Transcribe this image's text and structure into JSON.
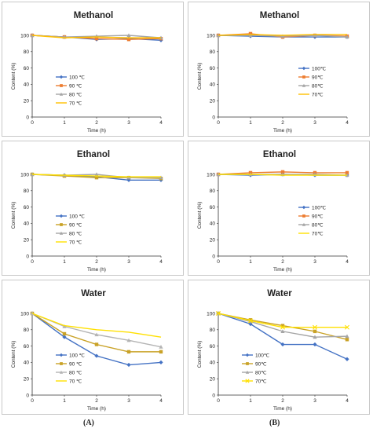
{
  "panel_labels": {
    "left": "(A)",
    "right": "(B)"
  },
  "chart_data": [
    {
      "type": "line",
      "title": "Methanol",
      "xlabel": "Time (h)",
      "ylabel": "Content (%)",
      "xlim": [
        0,
        4
      ],
      "ylim": [
        0,
        100
      ],
      "xticks": [
        "0",
        "1",
        "2",
        "3",
        "4"
      ],
      "yticks": [
        "0",
        "20",
        "40",
        "60",
        "80",
        "100"
      ],
      "x": [
        0,
        1,
        2,
        3,
        4
      ],
      "legend_position": "left",
      "series": [
        {
          "name": "100 ℃",
          "color": "#4472c4",
          "marker": "diamond",
          "values": [
            100,
            98,
            95,
            96,
            94
          ]
        },
        {
          "name": "90 ℃",
          "color": "#ed7d31",
          "marker": "square",
          "values": [
            100,
            98,
            96,
            95,
            96
          ]
        },
        {
          "name": "80 ℃",
          "color": "#a5a5a5",
          "marker": "triangle",
          "values": [
            100,
            98,
            99,
            100,
            97
          ]
        },
        {
          "name": "70 ℃",
          "color": "#ffc000",
          "marker": "none",
          "values": [
            100,
            97,
            98,
            97,
            97
          ]
        }
      ]
    },
    {
      "type": "line",
      "title": "Methanol",
      "xlabel": "Time (h)",
      "ylabel": "Content (%)",
      "xlim": [
        0,
        4
      ],
      "ylim": [
        0,
        100
      ],
      "xticks": [
        "0",
        "1",
        "2",
        "3",
        "4"
      ],
      "yticks": [
        "0",
        "20",
        "40",
        "60",
        "80",
        "100"
      ],
      "x": [
        0,
        1,
        2,
        3,
        4
      ],
      "legend_position": "right",
      "series": [
        {
          "name": "100℃",
          "color": "#4472c4",
          "marker": "diamond",
          "values": [
            100,
            99,
            98,
            98,
            98
          ]
        },
        {
          "name": "90℃",
          "color": "#ed7d31",
          "marker": "square",
          "values": [
            100,
            102,
            98,
            100,
            99
          ]
        },
        {
          "name": "80℃",
          "color": "#a5a5a5",
          "marker": "triangle",
          "values": [
            100,
            100,
            99,
            100,
            98
          ]
        },
        {
          "name": "70℃",
          "color": "#ffc000",
          "marker": "none",
          "values": [
            100,
            101,
            100,
            101,
            101
          ]
        }
      ]
    },
    {
      "type": "line",
      "title": "Ethanol",
      "xlabel": "Time (h)",
      "ylabel": "Content (%)",
      "xlim": [
        0,
        4
      ],
      "ylim": [
        0,
        100
      ],
      "xticks": [
        "0",
        "1",
        "2",
        "3",
        "4"
      ],
      "yticks": [
        "0",
        "20",
        "40",
        "60",
        "80",
        "100"
      ],
      "x": [
        0,
        1,
        2,
        3,
        4
      ],
      "legend_position": "left",
      "series": [
        {
          "name": "100 ℃",
          "color": "#4472c4",
          "marker": "diamond",
          "values": [
            100,
            99,
            97,
            93,
            93
          ]
        },
        {
          "name": "90 ℃",
          "color": "#c9a227",
          "marker": "square",
          "values": [
            100,
            98,
            96,
            96,
            95
          ]
        },
        {
          "name": "80 ℃",
          "color": "#a5a5a5",
          "marker": "triangle",
          "values": [
            100,
            99,
            100,
            96,
            96
          ]
        },
        {
          "name": "70 ℃",
          "color": "#ffe000",
          "marker": "none",
          "values": [
            100,
            99,
            98,
            97,
            97
          ]
        }
      ]
    },
    {
      "type": "line",
      "title": "Ethanol",
      "xlabel": "Time (h)",
      "ylabel": "Content (%)",
      "xlim": [
        0,
        4
      ],
      "ylim": [
        0,
        100
      ],
      "xticks": [
        "0",
        "1",
        "2",
        "3",
        "4"
      ],
      "yticks": [
        "0",
        "20",
        "40",
        "60",
        "80",
        "100"
      ],
      "x": [
        0,
        1,
        2,
        3,
        4
      ],
      "legend_position": "right",
      "series": [
        {
          "name": "100℃",
          "color": "#4472c4",
          "marker": "diamond",
          "values": [
            100,
            99,
            100,
            99,
            99
          ]
        },
        {
          "name": "90℃",
          "color": "#ed7d31",
          "marker": "square",
          "values": [
            100,
            102,
            103,
            102,
            102
          ]
        },
        {
          "name": "80℃",
          "color": "#a5a5a5",
          "marker": "triangle",
          "values": [
            100,
            100,
            100,
            100,
            99
          ]
        },
        {
          "name": "70℃",
          "color": "#ffe000",
          "marker": "none",
          "values": [
            100,
            100,
            99,
            99,
            99
          ]
        }
      ]
    },
    {
      "type": "line",
      "title": "Water",
      "xlabel": "Time (h)",
      "ylabel": "Content (%)",
      "xlim": [
        0,
        4
      ],
      "ylim": [
        0,
        100
      ],
      "xticks": [
        "0",
        "1",
        "2",
        "3",
        "4"
      ],
      "yticks": [
        "0",
        "20",
        "40",
        "60",
        "80",
        "100"
      ],
      "x": [
        0,
        1,
        2,
        3,
        4
      ],
      "legend_position": "left",
      "series": [
        {
          "name": "100 ℃",
          "color": "#4472c4",
          "marker": "diamond",
          "values": [
            100,
            71,
            48,
            37,
            40
          ]
        },
        {
          "name": "90 ℃",
          "color": "#c9a227",
          "marker": "square",
          "values": [
            100,
            75,
            62,
            53,
            53
          ]
        },
        {
          "name": "80 ℃",
          "color": "#b4b4b4",
          "marker": "triangle",
          "values": [
            100,
            84,
            74,
            67,
            59
          ]
        },
        {
          "name": "70 ℃",
          "color": "#ffe000",
          "marker": "none",
          "values": [
            100,
            85,
            80,
            77,
            71
          ]
        }
      ]
    },
    {
      "type": "line",
      "title": "Water",
      "xlabel": "Time (h)",
      "ylabel": "Content (%)",
      "xlim": [
        0,
        4
      ],
      "ylim": [
        0,
        100
      ],
      "xticks": [
        "0",
        "1",
        "2",
        "3",
        "4"
      ],
      "yticks": [
        "0",
        "20",
        "40",
        "60",
        "80",
        "100"
      ],
      "x": [
        0,
        1,
        2,
        3,
        4
      ],
      "legend_position": "left",
      "series": [
        {
          "name": "100℃",
          "color": "#4472c4",
          "marker": "diamond",
          "values": [
            100,
            87,
            62,
            62,
            44
          ]
        },
        {
          "name": "90℃",
          "color": "#c9a227",
          "marker": "square",
          "values": [
            100,
            92,
            85,
            78,
            68
          ]
        },
        {
          "name": "80℃",
          "color": "#a5a5a5",
          "marker": "triangle",
          "values": [
            100,
            90,
            78,
            71,
            72
          ]
        },
        {
          "name": "70℃",
          "color": "#ffe000",
          "marker": "x",
          "values": [
            100,
            91,
            83,
            83,
            83
          ]
        }
      ]
    }
  ]
}
